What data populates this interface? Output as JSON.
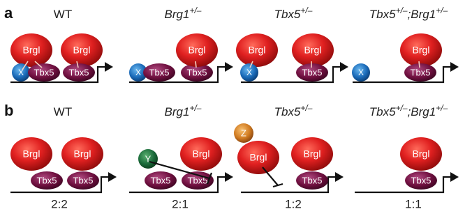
{
  "rows": [
    {
      "letter": "a",
      "panels": [
        {
          "heading": [
            {
              "text": "WT"
            }
          ],
          "nodes": [
            "Brgl",
            "Brgl",
            "X",
            "Tbx5",
            "Tbx5"
          ]
        },
        {
          "heading": [
            {
              "text": "Brg1",
              "sup": "+/–"
            }
          ],
          "nodes": [
            "X",
            "Tbx5",
            "Tbx5",
            "Brgl"
          ]
        },
        {
          "heading": [
            {
              "text": "Tbx5",
              "sup": "+/–"
            }
          ],
          "nodes": [
            "Brgl",
            "X",
            "Brgl",
            "Tbx5"
          ]
        },
        {
          "heading": [
            {
              "text": "Tbx5",
              "sup": "+/–"
            },
            {
              "text": ";Brg1",
              "sup": "+/–"
            }
          ],
          "nodes": [
            "X",
            "Brgl",
            "Tbx5"
          ]
        }
      ]
    },
    {
      "letter": "b",
      "panels": [
        {
          "heading": [
            {
              "text": "WT"
            }
          ],
          "nodes": [
            "Brgl",
            "Brgl",
            "Tbx5",
            "Tbx5"
          ]
        },
        {
          "heading": [
            {
              "text": "Brg1",
              "sup": "+/–"
            }
          ],
          "nodes": [
            "Y",
            "Brgl",
            "Tbx5",
            "Tbx5"
          ]
        },
        {
          "heading": [
            {
              "text": "Tbx5",
              "sup": "+/–"
            }
          ],
          "nodes": [
            "Z",
            "Brgl",
            "Brgl",
            "Tbx5"
          ]
        },
        {
          "heading": [
            {
              "text": "Tbx5",
              "sup": "+/–"
            },
            {
              "text": ";Brg1",
              "sup": "+/–"
            }
          ],
          "nodes": [
            "Brgl",
            "Tbx5"
          ]
        }
      ]
    }
  ],
  "ratios": [
    "2:2",
    "2:1",
    "1:2",
    "1:1"
  ]
}
